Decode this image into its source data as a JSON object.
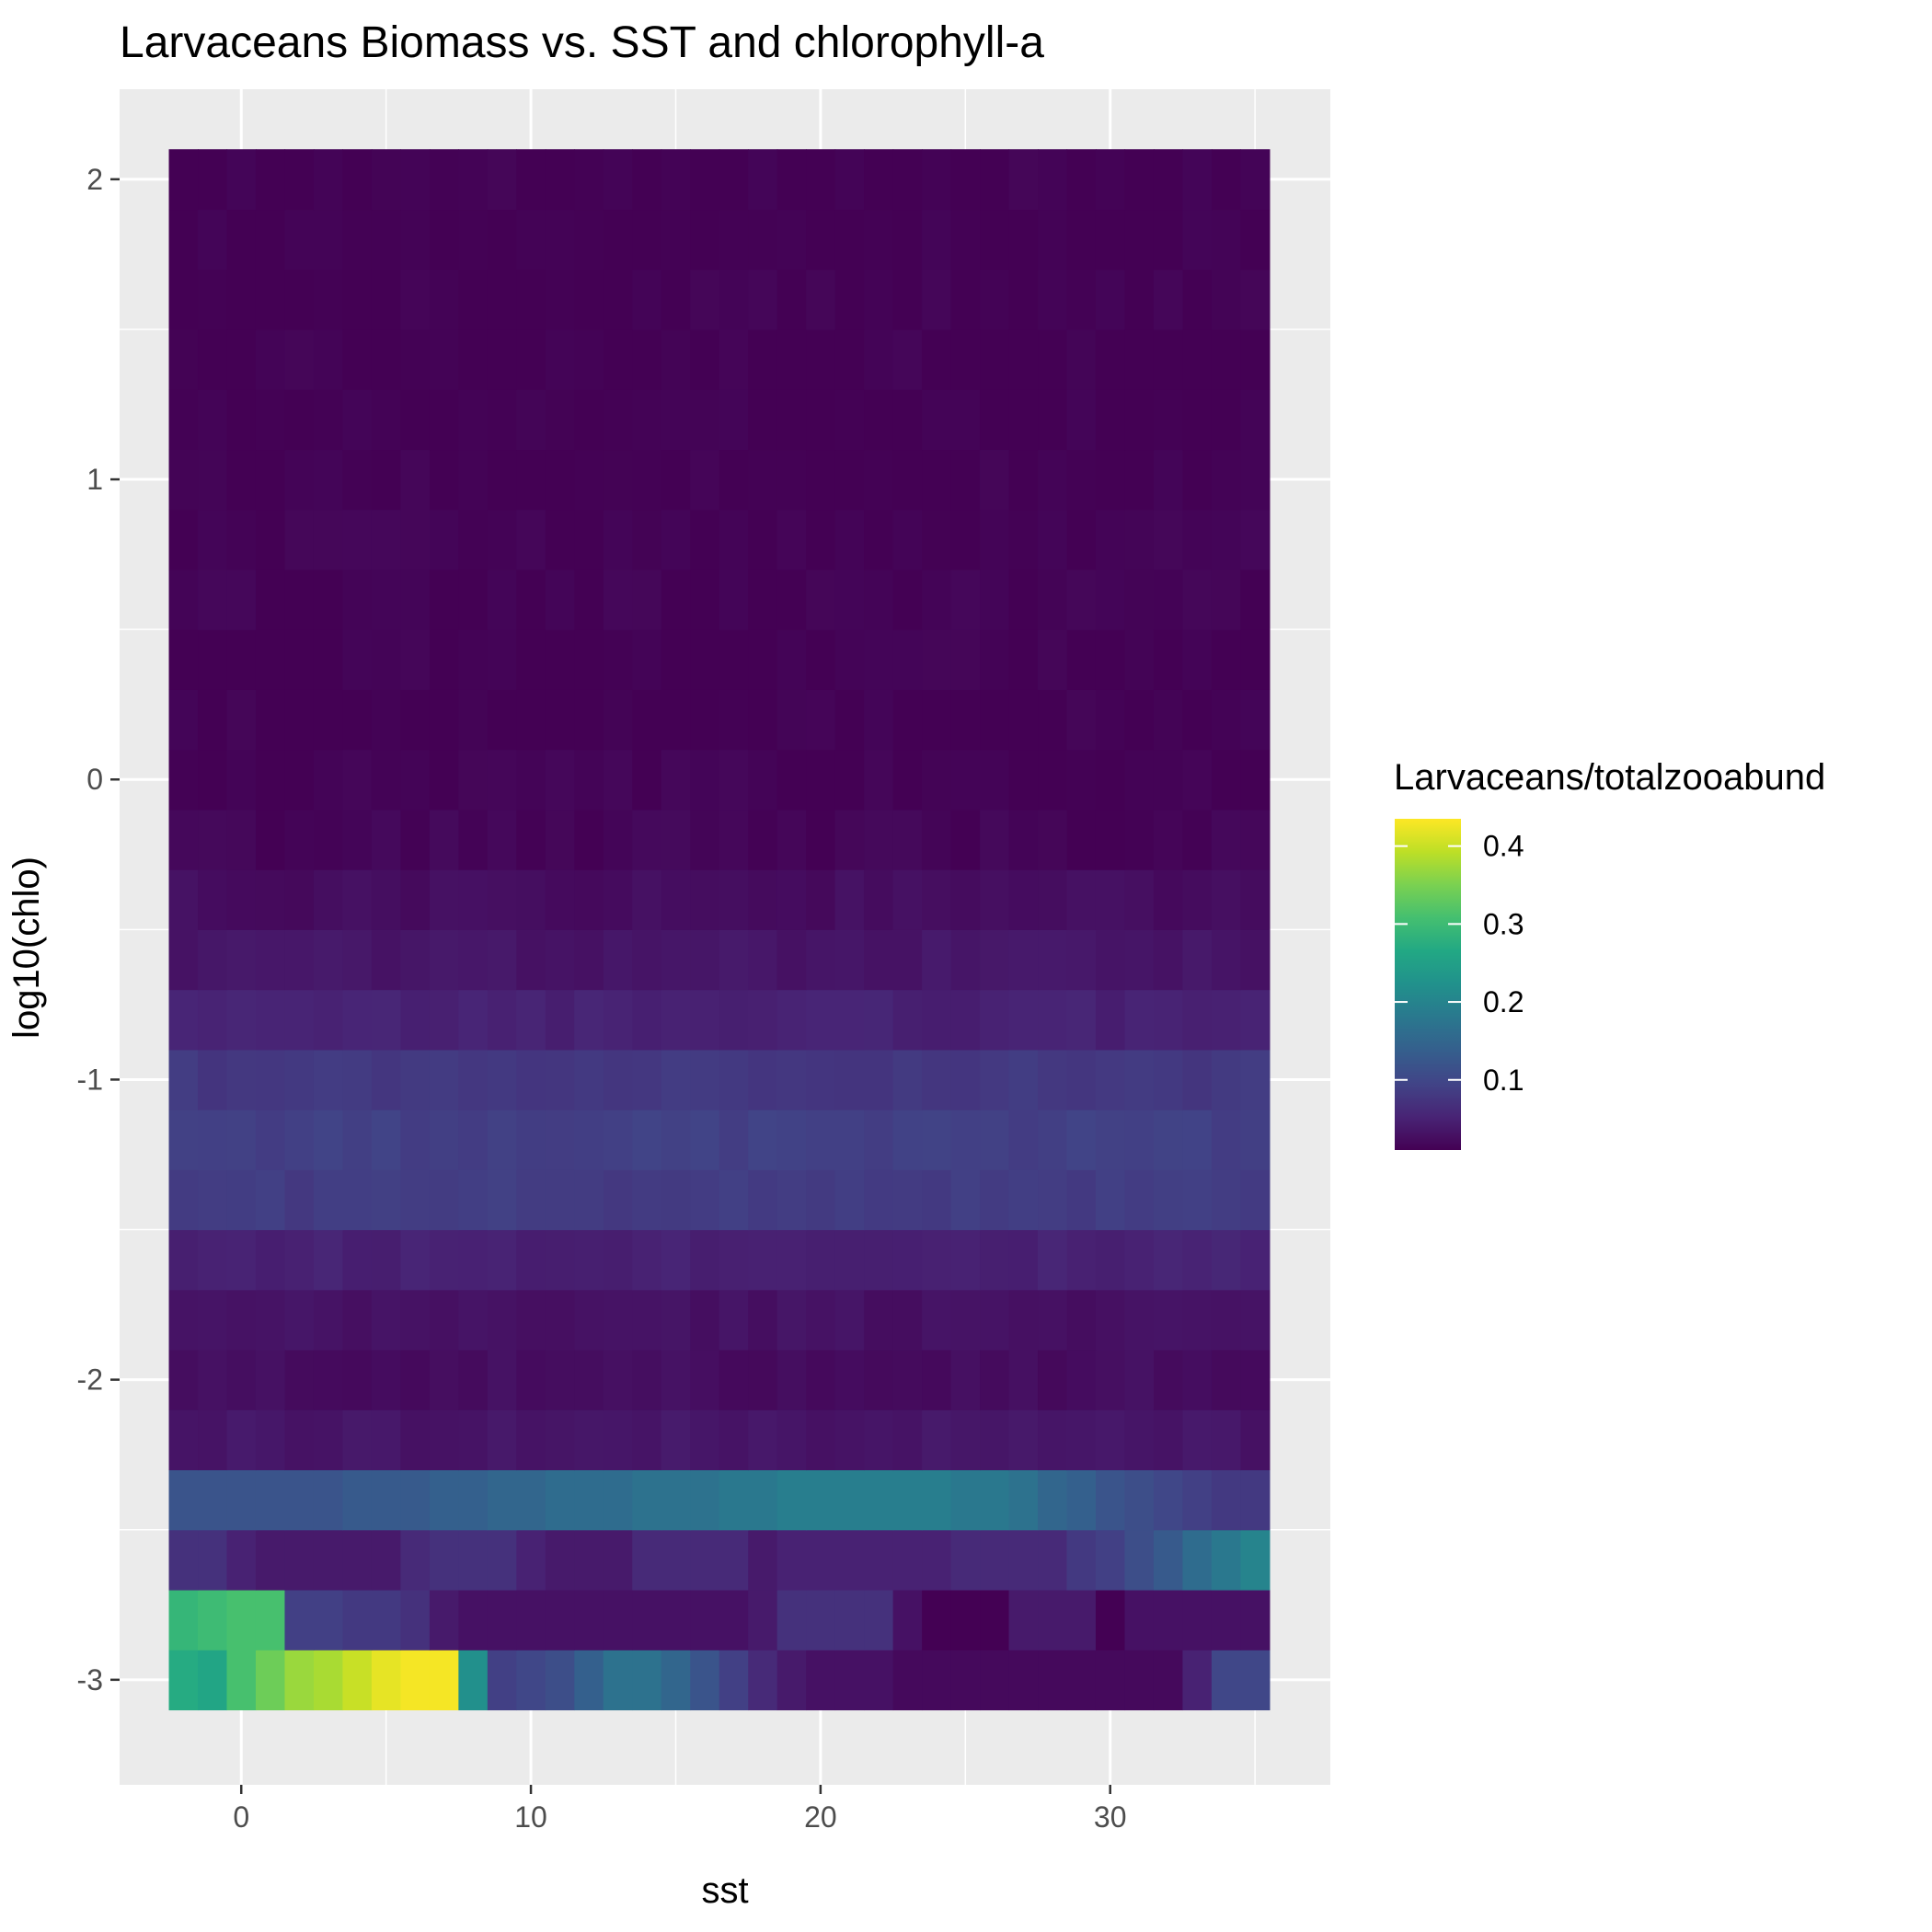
{
  "chart_data": {
    "type": "heatmap",
    "title": "Larvaceans Biomass vs. SST and chlorophyll-a",
    "xlabel": "sst",
    "ylabel": "log10(chlo)",
    "xlim": [
      -4.2,
      37.6
    ],
    "ylim": [
      -3.35,
      2.3
    ],
    "x_ticks": [
      0,
      10,
      20,
      30
    ],
    "x_tick_labels": [
      "0",
      "10",
      "20",
      "30"
    ],
    "y_ticks": [
      -3,
      -2,
      -1,
      0,
      1,
      2
    ],
    "y_tick_labels": [
      "-3",
      "-2",
      "-1",
      "0",
      "1",
      "2"
    ],
    "x_bins": {
      "start": -2.5,
      "step": 1,
      "count": 38
    },
    "y_bins": {
      "start": -3.1,
      "step": 0.2,
      "count": 26
    },
    "grid": true,
    "colorscale": "viridis",
    "legend": {
      "title": "Larvaceans/totalzooabund",
      "position": "right",
      "range": [
        0.01,
        0.435
      ],
      "ticks": [
        0.1,
        0.2,
        0.3,
        0.4
      ],
      "tick_labels": [
        "0.1",
        "0.2",
        "0.3",
        "0.4"
      ]
    },
    "band_values": [
      0.06,
      0.04,
      0.1,
      0.07,
      0.035,
      0.025,
      0.03,
      0.05,
      0.085,
      0.09,
      0.08,
      0.05,
      0.035,
      0.025,
      0.015,
      0.012,
      0.01,
      0.01,
      0.012,
      0.012,
      0.01,
      0.01,
      0.01,
      0.01,
      0.01,
      0.01
    ],
    "bottom_rows": {
      "row_0": [
        0.27,
        0.26,
        0.31,
        0.34,
        0.37,
        0.38,
        0.4,
        0.42,
        0.43,
        0.43,
        0.22,
        0.09,
        0.1,
        0.11,
        0.14,
        0.17,
        0.17,
        0.15,
        0.12,
        0.09,
        0.06,
        0.04,
        0.03,
        0.03,
        0.03,
        0.02,
        0.02,
        0.02,
        0.02,
        0.02,
        0.02,
        0.02,
        0.02,
        0.02,
        0.02,
        0.05,
        0.1,
        0.1
      ],
      "row_1": [
        0.29,
        0.3,
        0.31,
        0.31,
        0.09,
        0.09,
        0.08,
        0.08,
        0.07,
        0.04,
        0.03,
        0.03,
        0.03,
        0.03,
        0.03,
        0.03,
        0.03,
        0.03,
        0.03,
        0.03,
        0.04,
        0.07,
        0.07,
        0.07,
        0.07,
        0.03,
        0.01,
        0.01,
        0.01,
        0.04,
        0.04,
        0.04,
        0.01,
        0.03,
        0.03,
        0.03,
        0.03,
        0.03
      ],
      "row_2": [
        0.07,
        0.07,
        0.05,
        0.04,
        0.04,
        0.04,
        0.04,
        0.04,
        0.06,
        0.07,
        0.07,
        0.07,
        0.05,
        0.04,
        0.04,
        0.04,
        0.06,
        0.06,
        0.06,
        0.06,
        0.04,
        0.05,
        0.05,
        0.05,
        0.05,
        0.05,
        0.05,
        0.06,
        0.06,
        0.06,
        0.06,
        0.08,
        0.09,
        0.11,
        0.13,
        0.16,
        0.18,
        0.2
      ],
      "row_3": [
        0.12,
        0.12,
        0.12,
        0.12,
        0.12,
        0.12,
        0.13,
        0.13,
        0.13,
        0.14,
        0.14,
        0.15,
        0.15,
        0.16,
        0.16,
        0.16,
        0.17,
        0.17,
        0.17,
        0.18,
        0.18,
        0.19,
        0.19,
        0.19,
        0.19,
        0.19,
        0.19,
        0.18,
        0.18,
        0.17,
        0.15,
        0.14,
        0.12,
        0.11,
        0.1,
        0.09,
        0.08,
        0.08
      ]
    }
  }
}
